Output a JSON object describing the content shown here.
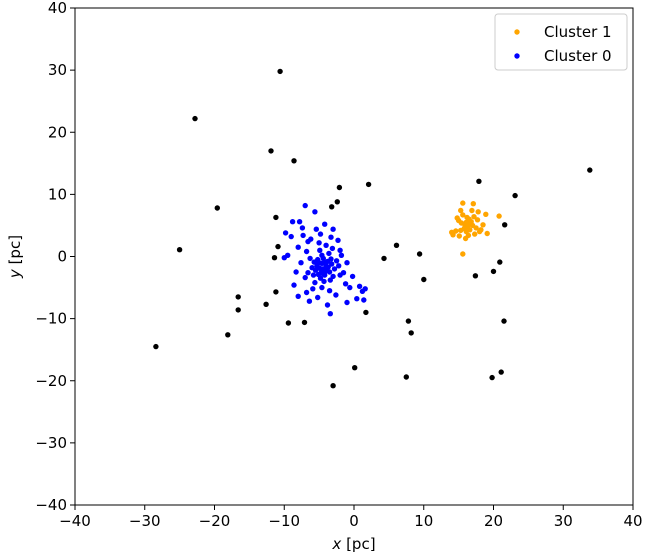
{
  "chart_data": {
    "type": "scatter",
    "xlabel_var": "x",
    "xlabel_unit": " [pc]",
    "ylabel_var": "y",
    "ylabel_unit": " [pc]",
    "xlim": [
      -40,
      40
    ],
    "ylim": [
      -40,
      40
    ],
    "xticks": [
      -40,
      -30,
      -20,
      -10,
      0,
      10,
      20,
      30,
      40
    ],
    "yticks": [
      -40,
      -30,
      -20,
      -10,
      0,
      10,
      20,
      30,
      40
    ],
    "xtick_labels": [
      "−40",
      "−30",
      "−20",
      "−10",
      "0",
      "10",
      "20",
      "30",
      "40"
    ],
    "ytick_labels": [
      "−40",
      "−30",
      "−20",
      "−10",
      "0",
      "10",
      "20",
      "30",
      "40"
    ],
    "grid": false,
    "legend_placement": "top-right",
    "series": [
      {
        "name": "Cluster 1",
        "color": "#ffa500",
        "points": [
          [
            15.0,
            5.8
          ],
          [
            15.3,
            4.2
          ],
          [
            15.6,
            6.7
          ],
          [
            15.9,
            5.1
          ],
          [
            16.1,
            5.5
          ],
          [
            16.3,
            4.8
          ],
          [
            16.5,
            6.0
          ],
          [
            16.8,
            5.6
          ],
          [
            17.0,
            5.0
          ],
          [
            16.2,
            6.3
          ],
          [
            15.8,
            4.5
          ],
          [
            16.6,
            4.3
          ],
          [
            17.2,
            6.4
          ],
          [
            14.6,
            4.1
          ],
          [
            14.2,
            3.5
          ],
          [
            14.0,
            3.9
          ],
          [
            15.1,
            3.3
          ],
          [
            16.0,
            2.9
          ],
          [
            17.3,
            3.6
          ],
          [
            18.2,
            4.3
          ],
          [
            19.1,
            3.7
          ],
          [
            15.6,
            8.6
          ],
          [
            17.1,
            8.5
          ],
          [
            17.8,
            7.2
          ],
          [
            18.9,
            6.8
          ],
          [
            16.9,
            7.4
          ],
          [
            15.3,
            7.4
          ],
          [
            15.6,
            0.4
          ],
          [
            16.4,
            3.4
          ],
          [
            17.7,
            5.9
          ],
          [
            18.5,
            5.1
          ],
          [
            20.8,
            6.5
          ],
          [
            14.8,
            6.2
          ],
          [
            15.4,
            5.4
          ],
          [
            16.7,
            5.3
          ],
          [
            17.5,
            4.6
          ],
          [
            16.1,
            4.0
          ],
          [
            18.0,
            4.0
          ]
        ]
      },
      {
        "name": "Cluster 0",
        "color": "#0000ff",
        "points": [
          [
            -4.5,
            -2.0
          ],
          [
            -4.0,
            -1.5
          ],
          [
            -5.0,
            -1.0
          ],
          [
            -3.5,
            -2.5
          ],
          [
            -4.2,
            -3.0
          ],
          [
            -5.5,
            -2.2
          ],
          [
            -3.8,
            -0.8
          ],
          [
            -4.8,
            -3.5
          ],
          [
            -3.2,
            -1.2
          ],
          [
            -5.2,
            -0.5
          ],
          [
            -4.6,
            0.2
          ],
          [
            -3.0,
            -3.2
          ],
          [
            -6.0,
            -1.8
          ],
          [
            -2.8,
            -2.0
          ],
          [
            -4.3,
            -4.0
          ],
          [
            -5.8,
            -3.0
          ],
          [
            -3.6,
            0.5
          ],
          [
            -4.9,
            1.0
          ],
          [
            -6.3,
            -0.3
          ],
          [
            -2.5,
            -0.7
          ],
          [
            -4.1,
            -1.0
          ],
          [
            -4.7,
            -2.6
          ],
          [
            -3.9,
            -2.1
          ],
          [
            -5.3,
            -1.5
          ],
          [
            -4.4,
            -0.3
          ],
          [
            -3.4,
            -3.8
          ],
          [
            -5.6,
            -4.2
          ],
          [
            -6.6,
            -2.6
          ],
          [
            -2.2,
            -1.5
          ],
          [
            -4.0,
            1.8
          ],
          [
            -5.0,
            2.2
          ],
          [
            -3.1,
            1.3
          ],
          [
            -6.8,
            0.8
          ],
          [
            -7.0,
            -3.4
          ],
          [
            -2.0,
            -3.0
          ],
          [
            -4.6,
            -5.0
          ],
          [
            -3.5,
            -5.5
          ],
          [
            -5.9,
            -5.2
          ],
          [
            -1.8,
            0.2
          ],
          [
            -6.2,
            2.8
          ],
          [
            -3.3,
            3.1
          ],
          [
            -4.8,
            3.6
          ],
          [
            -7.3,
            3.4
          ],
          [
            -8.0,
            1.5
          ],
          [
            -2.3,
            2.6
          ],
          [
            -1.5,
            -2.6
          ],
          [
            -7.6,
            -1.0
          ],
          [
            -8.3,
            -2.5
          ],
          [
            -1.2,
            -4.4
          ],
          [
            -2.6,
            -6.2
          ],
          [
            -5.2,
            -6.6
          ],
          [
            -6.8,
            -5.8
          ],
          [
            -8.6,
            -4.6
          ],
          [
            -9.5,
            0.2
          ],
          [
            -9.0,
            3.2
          ],
          [
            -8.8,
            5.6
          ],
          [
            -7.8,
            5.6
          ],
          [
            -7.0,
            8.2
          ],
          [
            -5.6,
            7.2
          ],
          [
            -4.2,
            5.2
          ],
          [
            -3.0,
            4.4
          ],
          [
            -9.8,
            3.8
          ],
          [
            -10.0,
            -0.2
          ],
          [
            -8.0,
            -6.4
          ],
          [
            -6.4,
            -7.2
          ],
          [
            -3.8,
            -7.8
          ],
          [
            -3.4,
            -9.2
          ],
          [
            -0.6,
            -5.0
          ],
          [
            -0.2,
            -3.2
          ],
          [
            0.8,
            -4.8
          ],
          [
            1.2,
            -5.6
          ],
          [
            1.6,
            -5.2
          ],
          [
            1.4,
            -7.0
          ],
          [
            0.4,
            -6.8
          ],
          [
            -1.0,
            -7.4
          ],
          [
            -7.4,
            4.6
          ],
          [
            -6.6,
            2.4
          ],
          [
            -5.4,
            4.4
          ],
          [
            -2.0,
            1.0
          ],
          [
            -1.0,
            -1.0
          ],
          [
            -4.9,
            -1.9
          ],
          [
            -4.1,
            -2.4
          ],
          [
            -3.7,
            -1.7
          ],
          [
            -4.4,
            -2.8
          ],
          [
            -5.1,
            -2.9
          ],
          [
            -3.3,
            -0.4
          ],
          [
            -4.6,
            -1.1
          ],
          [
            -5.7,
            -0.9
          ]
        ]
      },
      {
        "name": "",
        "color": "#000000",
        "points": [
          [
            -10.6,
            29.8
          ],
          [
            -22.8,
            22.2
          ],
          [
            -11.9,
            17.0
          ],
          [
            -8.6,
            15.4
          ],
          [
            -2.1,
            11.1
          ],
          [
            2.1,
            11.6
          ],
          [
            -19.6,
            7.8
          ],
          [
            -11.2,
            6.3
          ],
          [
            -3.2,
            8.0
          ],
          [
            -2.4,
            8.8
          ],
          [
            -25.0,
            1.1
          ],
          [
            -10.9,
            1.6
          ],
          [
            -11.4,
            -0.2
          ],
          [
            4.3,
            -0.3
          ],
          [
            6.1,
            1.8
          ],
          [
            9.4,
            0.4
          ],
          [
            10.0,
            -3.7
          ],
          [
            -16.6,
            -6.5
          ],
          [
            -16.6,
            -8.6
          ],
          [
            -11.2,
            -5.7
          ],
          [
            -18.1,
            -12.6
          ],
          [
            -12.6,
            -7.7
          ],
          [
            -9.4,
            -10.7
          ],
          [
            -7.1,
            -10.6
          ],
          [
            1.7,
            -9.0
          ],
          [
            7.8,
            -10.4
          ],
          [
            8.2,
            -12.3
          ],
          [
            -28.4,
            -14.5
          ],
          [
            0.1,
            -17.9
          ],
          [
            7.5,
            -19.4
          ],
          [
            -3.0,
            -20.8
          ],
          [
            17.9,
            12.1
          ],
          [
            23.1,
            9.8
          ],
          [
            33.8,
            13.9
          ],
          [
            21.6,
            5.1
          ],
          [
            20.9,
            -0.9
          ],
          [
            20.0,
            -2.4
          ],
          [
            17.4,
            -3.1
          ],
          [
            21.5,
            -10.4
          ],
          [
            21.1,
            -18.6
          ],
          [
            19.8,
            -19.5
          ]
        ]
      }
    ]
  }
}
